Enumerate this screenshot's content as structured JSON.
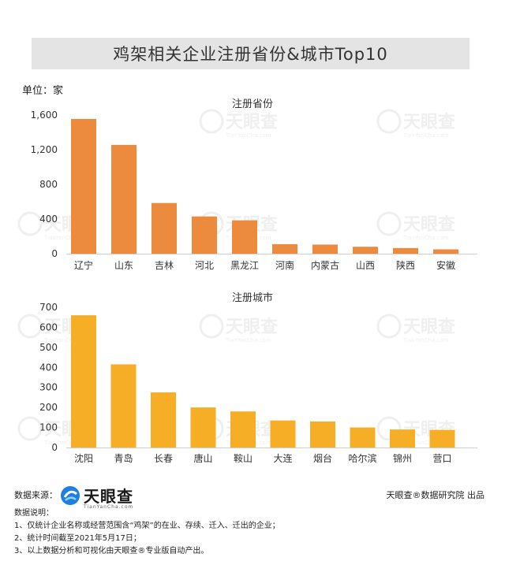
{
  "title": "鸡架相关企业注册省份&城市Top10",
  "unit_label": "单位：家",
  "chart_data": [
    {
      "type": "bar",
      "title": "注册省份",
      "categories": [
        "辽宁",
        "山东",
        "吉林",
        "河北",
        "黑龙江",
        "河南",
        "内蒙古",
        "山西",
        "陕西",
        "安徽"
      ],
      "values": [
        1555,
        1255,
        585,
        430,
        385,
        110,
        105,
        80,
        65,
        50
      ],
      "yticks": [
        "0",
        "400",
        "800",
        "1,200",
        "1,600"
      ],
      "ylim": [
        0,
        1600
      ],
      "color": "#ec8a3d",
      "grid": false
    },
    {
      "type": "bar",
      "title": "注册城市",
      "categories": [
        "沈阳",
        "青岛",
        "长春",
        "唐山",
        "鞍山",
        "大连",
        "烟台",
        "哈尔滨",
        "锦州",
        "营口"
      ],
      "values": [
        660,
        415,
        275,
        200,
        180,
        135,
        130,
        100,
        90,
        88
      ],
      "yticks": [
        "0",
        "100",
        "200",
        "300",
        "400",
        "500",
        "600",
        "700"
      ],
      "ylim": [
        0,
        700
      ],
      "color": "#f5ae25",
      "grid": false
    }
  ],
  "watermark": {
    "brand": "天眼查",
    "url": "TianYanCha.com"
  },
  "footer": {
    "source_label": "数据来源：",
    "logo_text": "天眼查",
    "logo_sub": "TianYanCha.com",
    "credit": "天眼查®数据研究院 出品",
    "notes_title": "数据说明：",
    "notes": [
      "1、仅统计企业名称或经营范围含“鸡架”的在业、存续、迁入、迁出的企业；",
      "2、统计时间截至2021年5月17日；",
      "3、以上数据分析和可视化由天眼查®专业版自动产出。"
    ]
  },
  "colors": {
    "title_bg": "#e4e4e4",
    "logo_blue": "#1e7fe0"
  }
}
